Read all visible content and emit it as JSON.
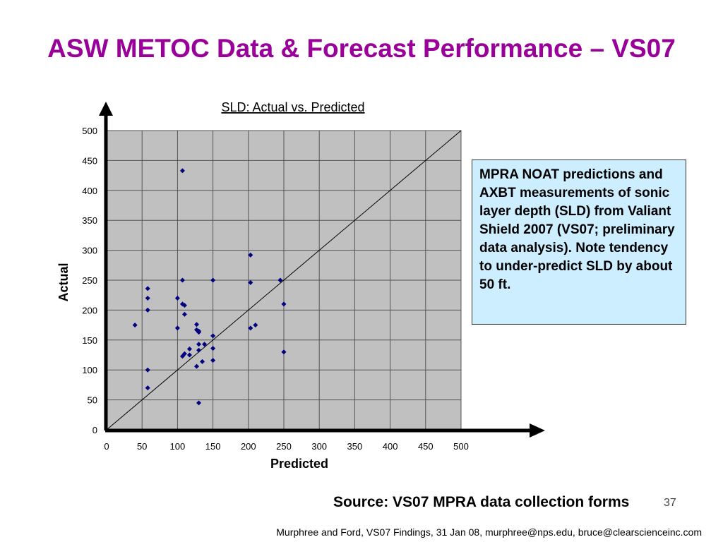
{
  "slide": {
    "title": "ASW METOC Data & Forecast Performance – VS07",
    "note": "MPRA NOAT predictions and AXBT measurements of sonic layer depth (SLD) from Valiant Shield 2007 (VS07; preliminary data analysis).  Note tendency to under-predict SLD by about 50 ft.",
    "source": "Source:  VS07 MPRA data collection forms",
    "slide_number": "37",
    "footer": "Murphree and Ford, VS07 Findings, 31 Jan 08, murphree@nps.edu, bruce@clearscienceinc.com"
  },
  "colors": {
    "title": "#990099",
    "plot_background": "#c0c0c0",
    "marker": "#000080",
    "note_background": "#cceeff"
  },
  "chart_data": {
    "type": "scatter",
    "title": "SLD: Actual vs. Predicted",
    "xlabel": "Predicted",
    "ylabel": "Actual",
    "xlim": [
      0,
      500
    ],
    "ylim": [
      0,
      500
    ],
    "xticks": [
      0,
      50,
      100,
      150,
      200,
      250,
      300,
      350,
      400,
      450,
      500
    ],
    "yticks": [
      0,
      50,
      100,
      150,
      200,
      250,
      300,
      350,
      400,
      450,
      500
    ],
    "grid": true,
    "reference_line": {
      "from": [
        0,
        0
      ],
      "to": [
        500,
        500
      ]
    },
    "marker": "diamond",
    "series": [
      {
        "points": [
          [
            40,
            175
          ],
          [
            58,
            236
          ],
          [
            58,
            220
          ],
          [
            58,
            200
          ],
          [
            58,
            100
          ],
          [
            58,
            70
          ],
          [
            100,
            220
          ],
          [
            100,
            170
          ],
          [
            107,
            433
          ],
          [
            107,
            250
          ],
          [
            107,
            210
          ],
          [
            110,
            208
          ],
          [
            110,
            193
          ],
          [
            107,
            123
          ],
          [
            110,
            127
          ],
          [
            117,
            135
          ],
          [
            117,
            125
          ],
          [
            127,
            176
          ],
          [
            127,
            167
          ],
          [
            130,
            165
          ],
          [
            130,
            163
          ],
          [
            130,
            143
          ],
          [
            130,
            133
          ],
          [
            127,
            106
          ],
          [
            135,
            114
          ],
          [
            138,
            143
          ],
          [
            130,
            45
          ],
          [
            150,
            250
          ],
          [
            150,
            157
          ],
          [
            150,
            136
          ],
          [
            150,
            116
          ],
          [
            203,
            292
          ],
          [
            203,
            246
          ],
          [
            203,
            170
          ],
          [
            210,
            175
          ],
          [
            245,
            250
          ],
          [
            250,
            210
          ],
          [
            250,
            130
          ]
        ]
      }
    ]
  }
}
